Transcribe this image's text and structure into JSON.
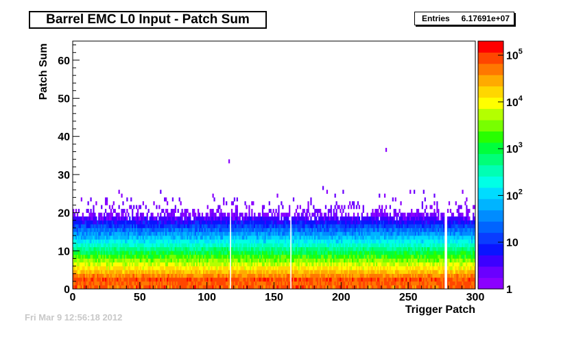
{
  "chart_data": {
    "type": "heatmap",
    "title": "Barrel EMC L0 Input - Patch Sum",
    "xlabel": "Trigger Patch",
    "ylabel": "Patch Sum",
    "xlim": [
      0,
      300
    ],
    "ylim": [
      0,
      65
    ],
    "x_ticks": [
      0,
      50,
      100,
      150,
      200,
      250,
      300
    ],
    "y_ticks": [
      0,
      10,
      20,
      30,
      40,
      50,
      60
    ],
    "x_tick_labels": [
      "0",
      "50",
      "100",
      "150",
      "200",
      "250",
      "300"
    ],
    "y_tick_labels": [
      "0",
      "10",
      "20",
      "30",
      "40",
      "50",
      "60"
    ],
    "color_scale": "log",
    "z_range": [
      1,
      200000
    ],
    "colorbar_ticks": [
      {
        "value": 1,
        "base": "1",
        "exp": ""
      },
      {
        "value": 10,
        "base": "10",
        "exp": ""
      },
      {
        "value": 100,
        "base": "10",
        "exp": "2"
      },
      {
        "value": 1000,
        "base": "10",
        "exp": "3"
      },
      {
        "value": 10000,
        "base": "10",
        "exp": "4"
      },
      {
        "value": 100000,
        "base": "10",
        "exp": "5"
      }
    ],
    "palette": [
      "#8b00ff",
      "#6a00ff",
      "#3c00ff",
      "#0a14ff",
      "#0a3cff",
      "#0064ff",
      "#008cff",
      "#00b4ff",
      "#00dcff",
      "#00ffe6",
      "#00ffb4",
      "#00ff78",
      "#00ff3c",
      "#28ff00",
      "#78ff00",
      "#b4ff00",
      "#ffff00",
      "#ffd700",
      "#ffaa00",
      "#ff7800",
      "#ff4600",
      "#ff0000"
    ],
    "gap_columns": [
      117,
      162,
      277,
      278
    ],
    "profile_description": "counts ~1e5 at patch sum 0-1, falling to ~1e3 near 5, ~1e2 near 10, ~10 near 20, sparse single counts above 30",
    "entries": "6.17691e+07"
  },
  "stats": {
    "entries_label": "Entries",
    "entries_value": "6.17691e+07"
  },
  "footer": {
    "date_text": "Fri Mar 9 12:56:18 2012"
  }
}
